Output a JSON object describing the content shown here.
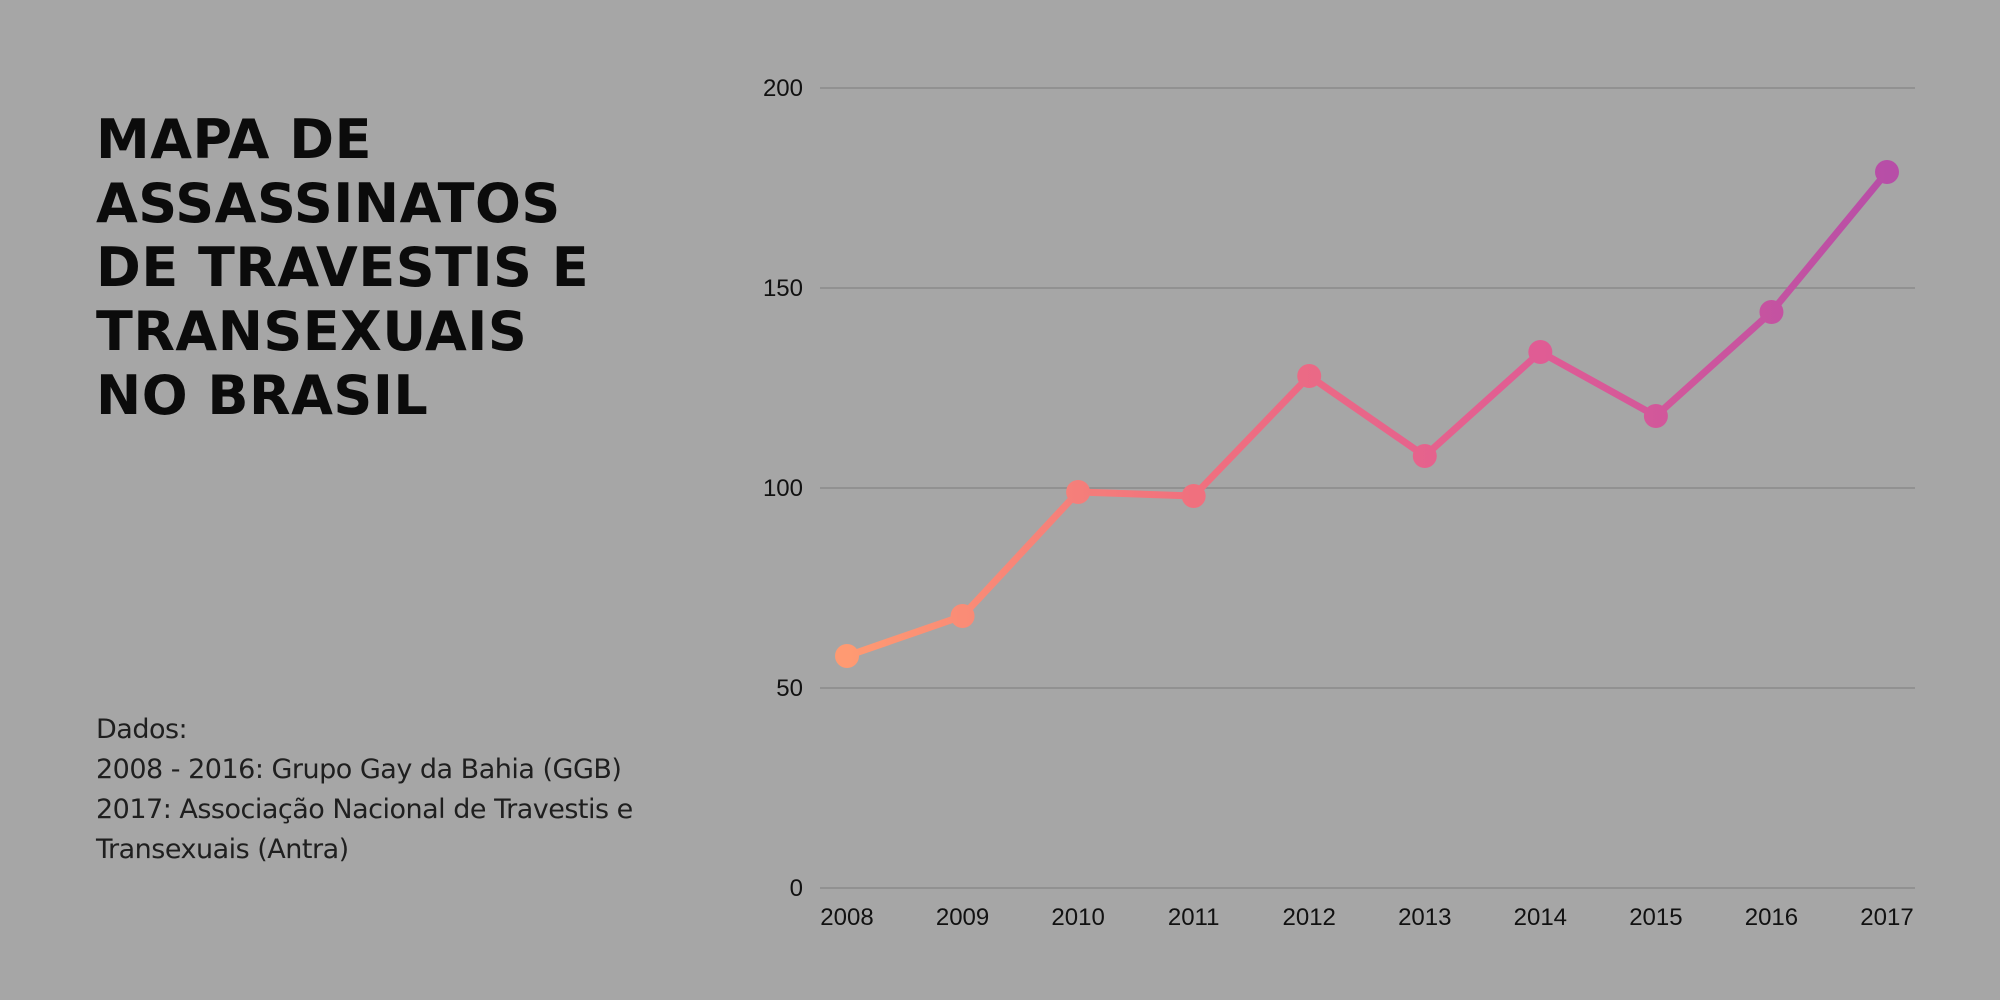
{
  "title_lines": [
    "MAPA DE",
    "ASSASSINATOS",
    "DE TRAVESTIS E",
    "TRANSEXUAIS",
    "NO BRASIL"
  ],
  "sources": {
    "heading": "Dados:",
    "line1": "2008 - 2016: Grupo Gay da Bahia (GGB)",
    "line2": "2017: Associação Nacional de Travestis e",
    "line3": "Transexuais (Antra)"
  },
  "chart_data": {
    "type": "line",
    "title": "MAPA DE ASSASSINATOS DE TRAVESTIS E TRANSEXUAIS NO BRASIL",
    "xlabel": "",
    "ylabel": "",
    "categories": [
      "2008",
      "2009",
      "2010",
      "2011",
      "2012",
      "2013",
      "2014",
      "2015",
      "2016",
      "2017"
    ],
    "series": [
      {
        "values": [
          58,
          68,
          99,
          98,
          128,
          108,
          134,
          118,
          144,
          179
        ]
      }
    ],
    "ylim": [
      0,
      200
    ],
    "yticks": [
      0,
      50,
      100,
      150,
      200
    ],
    "grid": true,
    "legend": "none",
    "gradient_colors": [
      "#ff9a72",
      "#f0707e",
      "#e05c94",
      "#b74ea7"
    ]
  },
  "colors": {
    "background": "#a6a6a6",
    "gridline": "#8a8a8a"
  }
}
